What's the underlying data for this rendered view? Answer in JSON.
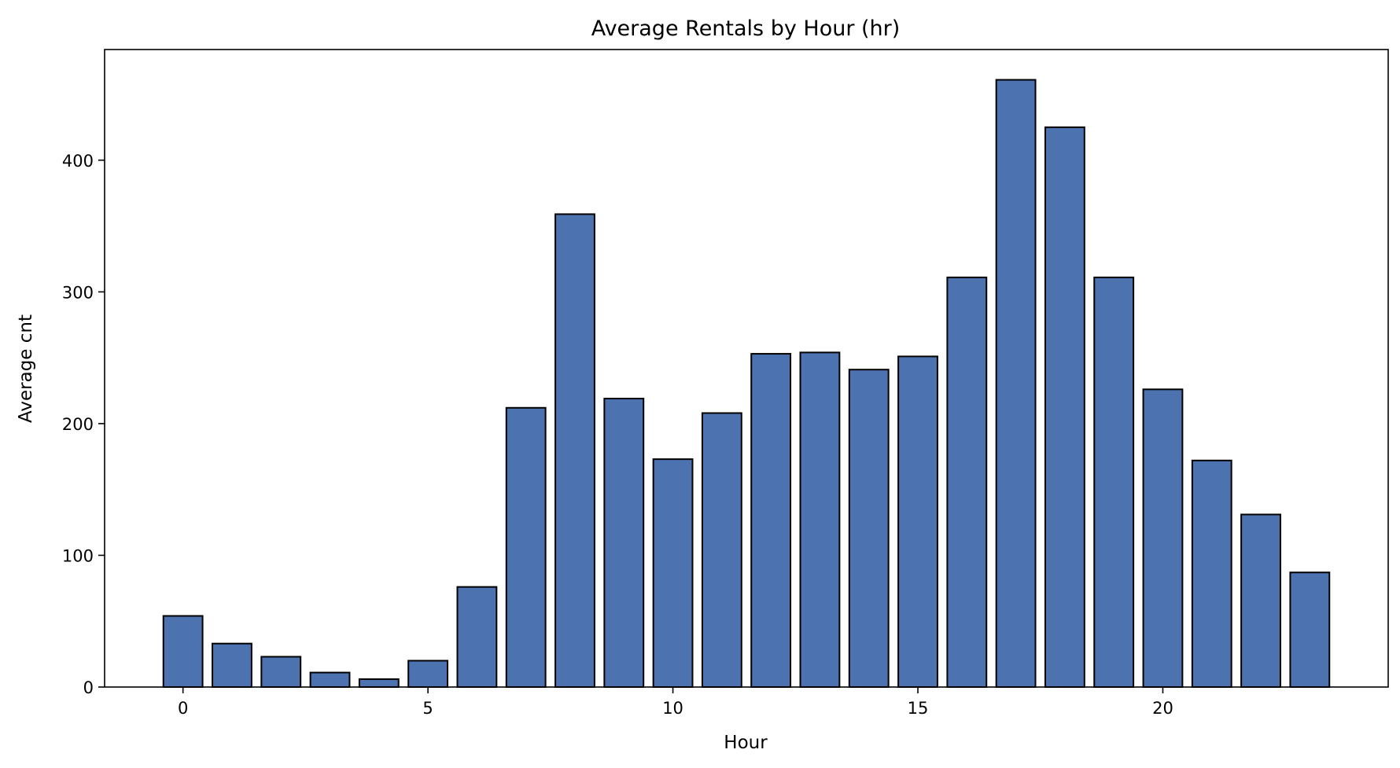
{
  "colors": {
    "bar_fill": "#4c72b0",
    "bar_edge": "#000000",
    "axes": "#000000",
    "background": "#ffffff"
  },
  "chart_data": {
    "type": "bar",
    "title": "Average Rentals by Hour (hr)",
    "xlabel": "Hour",
    "ylabel": "Average cnt",
    "x": [
      0,
      1,
      2,
      3,
      4,
      5,
      6,
      7,
      8,
      9,
      10,
      11,
      12,
      13,
      14,
      15,
      16,
      17,
      18,
      19,
      20,
      21,
      22,
      23
    ],
    "values": [
      54,
      33,
      23,
      11,
      6,
      20,
      76,
      212,
      359,
      219,
      173,
      208,
      253,
      254,
      241,
      251,
      311,
      461,
      425,
      311,
      226,
      172,
      131,
      87
    ],
    "xlim": [
      -1.6,
      24.6
    ],
    "ylim": [
      0,
      484
    ],
    "xticks": [
      0,
      5,
      10,
      15,
      20
    ],
    "yticks": [
      0,
      100,
      200,
      300,
      400
    ],
    "grid": false,
    "legend": "none"
  }
}
